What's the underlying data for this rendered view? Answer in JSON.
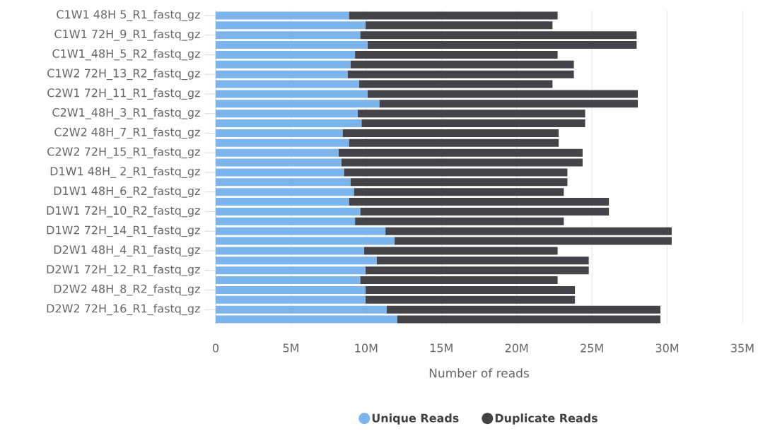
{
  "chart_data": {
    "type": "bar",
    "orientation": "horizontal",
    "stacked": true,
    "categories": [
      "C1W1 48H 5_R1_fastq_gz",
      null,
      "C1W1 72H_9_R1_fastq_gz",
      null,
      "C1W1_48H_5_R2_fastq_gz",
      null,
      "C1W2 72H_13_R2_fastq_gz",
      null,
      "C2W1 72H_11_R1_fastq_gz",
      null,
      "C2W1_48H_3_R1_fastq_gz",
      null,
      "C2W2 48H_7_R1_fastq_gz",
      null,
      "C2W2 72H_15_R1_fastq_gz",
      null,
      "D1W1 48H_ 2_R1_fastq_gz",
      null,
      "D1W1 48H_6_R2_fastq_gz",
      null,
      "D1W1 72H_10_R2_fastq_gz",
      null,
      "D1W2 72H_14_R1_fastq_gz",
      null,
      "D2W1 48H_4_R1_fastq_gz",
      null,
      "D2W1 72H_12_R1_fastq_gz",
      null,
      "D2W2 48H_8_R2_fastq_gz",
      null,
      "D2W2 72H_16_R1_fastq_gz",
      null
    ],
    "series": [
      {
        "name": "Unique Reads",
        "color": "#7cb5ec",
        "values": [
          8.85,
          9.95,
          9.6,
          10.1,
          9.26,
          8.95,
          8.76,
          9.52,
          10.1,
          10.87,
          9.44,
          9.69,
          8.43,
          8.85,
          8.17,
          8.34,
          8.52,
          8.95,
          9.18,
          8.85,
          9.6,
          9.26,
          11.28,
          11.89,
          9.85,
          10.69,
          9.95,
          9.6,
          9.95,
          9.95,
          11.37,
          12.05
        ]
      },
      {
        "name": "Duplicate Reads",
        "color": "#434348",
        "values": [
          13.87,
          12.43,
          18.37,
          17.87,
          13.46,
          14.85,
          15.04,
          12.86,
          17.95,
          17.18,
          15.11,
          14.86,
          14.36,
          13.94,
          16.21,
          16.04,
          14.85,
          14.42,
          13.95,
          17.28,
          16.53,
          13.87,
          19.02,
          18.41,
          12.87,
          14.1,
          14.84,
          13.12,
          13.92,
          13.92,
          18.18,
          17.5
        ]
      }
    ],
    "xlabel": "Number of reads",
    "xlim": [
      0,
      35
    ],
    "xticks": [
      0,
      {
        "value": 5,
        "label": "5M"
      },
      {
        "value": 10,
        "label": "10M"
      },
      {
        "value": 15,
        "label": "15M"
      },
      {
        "value": 20,
        "label": "20M"
      },
      {
        "value": 25,
        "label": "25M"
      },
      {
        "value": 30,
        "label": "30M"
      },
      {
        "value": 35,
        "label": "35M"
      }
    ],
    "grid": "x",
    "legend": "bottom"
  }
}
